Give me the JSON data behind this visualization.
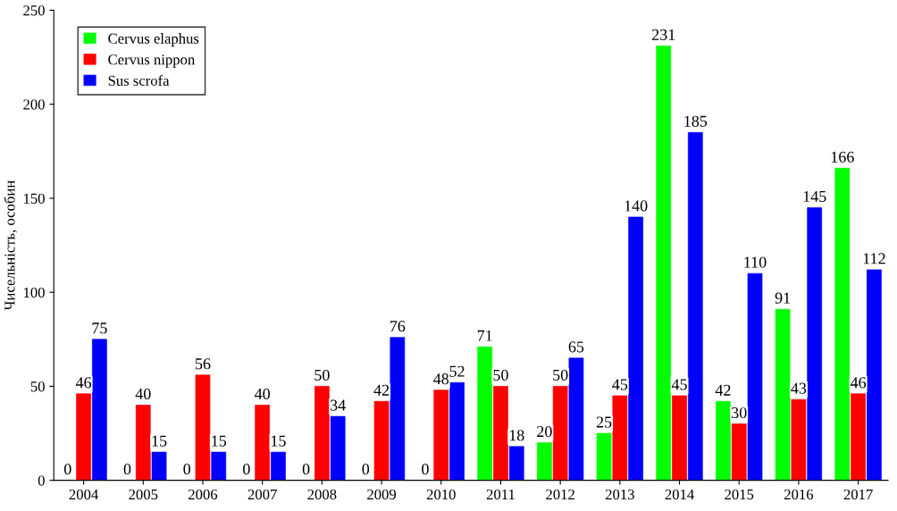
{
  "chart_data": {
    "type": "bar",
    "ylabel": "Чисельність, особин",
    "categories": [
      "2004",
      "2005",
      "2006",
      "2007",
      "2008",
      "2009",
      "2010",
      "2011",
      "2012",
      "2013",
      "2014",
      "2015",
      "2016",
      "2017"
    ],
    "series": [
      {
        "name": "Cervus elaphus",
        "color": "#00ff00",
        "values": [
          0,
          0,
          0,
          0,
          0,
          0,
          0,
          71,
          20,
          25,
          231,
          42,
          91,
          166
        ]
      },
      {
        "name": "Cervus nippon",
        "color": "#ff0000",
        "values": [
          46,
          40,
          56,
          40,
          50,
          42,
          48,
          50,
          50,
          45,
          45,
          30,
          43,
          46
        ]
      },
      {
        "name": "Sus scrofa",
        "color": "#0000ff",
        "values": [
          75,
          15,
          15,
          15,
          34,
          76,
          52,
          18,
          65,
          140,
          185,
          110,
          145,
          112
        ]
      }
    ],
    "ylim": [
      0,
      250
    ],
    "yticks": [
      0,
      50,
      100,
      150,
      200,
      250
    ],
    "grid": false,
    "legend": "top left",
    "data_labels": true
  }
}
